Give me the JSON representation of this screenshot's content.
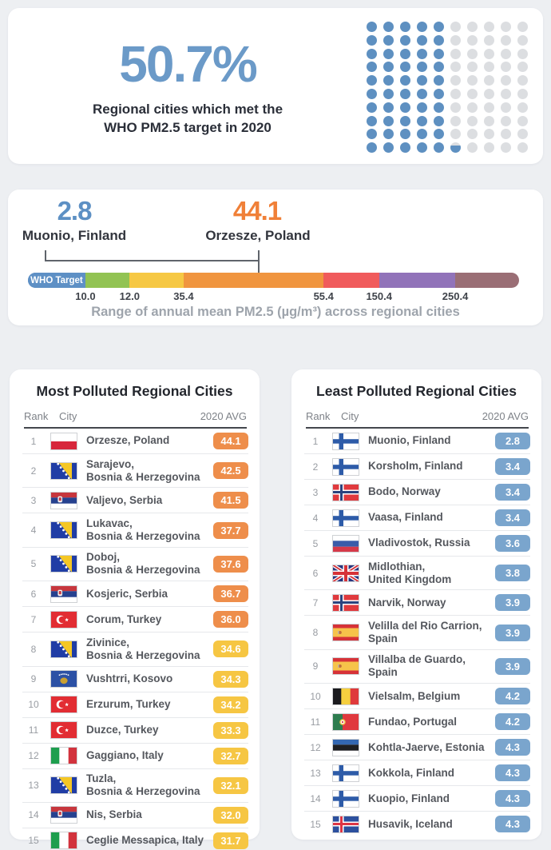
{
  "stat_card": {
    "value": "50.7%",
    "caption_line1": "Regional cities which met the",
    "caption_line2": "WHO PM2.5 target in 2020",
    "value_color": "#6b9ac8",
    "dot_filled_color": "#5e90c1",
    "dot_empty_color": "#dcdee1"
  },
  "range_card": {
    "min": {
      "value": "2.8",
      "label": "Muonio, Finland",
      "color": "#5d90c4"
    },
    "max": {
      "value": "44.1",
      "label": "Orzesze, Poland",
      "color": "#f08038"
    },
    "who_pill_label": "WHO Target",
    "segments": [
      {
        "name": "who-target",
        "color": "#5e90c5",
        "width_pct": 11.7
      },
      {
        "name": "band-good",
        "color": "#92c353",
        "width_pct": 9.0
      },
      {
        "name": "band-moderate",
        "color": "#f6c844",
        "width_pct": 11.0
      },
      {
        "name": "band-unhealthy-sensitive",
        "color": "#f0953f",
        "width_pct": 28.5
      },
      {
        "name": "band-unhealthy",
        "color": "#f05b5c",
        "width_pct": 11.3
      },
      {
        "name": "band-very-unhealthy",
        "color": "#9173b9",
        "width_pct": 15.5
      },
      {
        "name": "band-hazardous",
        "color": "#9a6e75",
        "width_pct": 13.0
      }
    ],
    "ticks": [
      {
        "label": "10.0",
        "pct": 11.7
      },
      {
        "label": "12.0",
        "pct": 20.7
      },
      {
        "label": "35.4",
        "pct": 31.7
      },
      {
        "label": "55.4",
        "pct": 60.2
      },
      {
        "label": "150.4",
        "pct": 71.5
      },
      {
        "label": "250.4",
        "pct": 87.0
      }
    ],
    "caption": "Range of annual mean PM2.5 (µg/m³) across regional cities"
  },
  "badge_colors": {
    "orange": "#ee8e4b",
    "yellow": "#f6c643",
    "blue": "#7aa5cd"
  },
  "tables": {
    "most": {
      "title": "Most Polluted Regional Cities",
      "headers": [
        "Rank",
        "City",
        "2020 AVG"
      ],
      "rows": [
        {
          "rank": "1",
          "flag": "poland",
          "city": [
            "Orzesze, Poland"
          ],
          "value": "44.1",
          "badge": "orange"
        },
        {
          "rank": "2",
          "flag": "bosnia-herzegovina",
          "city": [
            "Sarajevo,",
            "Bosnia & Herzegovina"
          ],
          "value": "42.5",
          "badge": "orange"
        },
        {
          "rank": "3",
          "flag": "serbia",
          "city": [
            "Valjevo, Serbia"
          ],
          "value": "41.5",
          "badge": "orange"
        },
        {
          "rank": "4",
          "flag": "bosnia-herzegovina",
          "city": [
            "Lukavac,",
            "Bosnia & Herzegovina"
          ],
          "value": "37.7",
          "badge": "orange"
        },
        {
          "rank": "5",
          "flag": "bosnia-herzegovina",
          "city": [
            "Doboj,",
            "Bosnia & Herzegovina"
          ],
          "value": "37.6",
          "badge": "orange"
        },
        {
          "rank": "6",
          "flag": "serbia",
          "city": [
            "Kosjeric, Serbia"
          ],
          "value": "36.7",
          "badge": "orange"
        },
        {
          "rank": "7",
          "flag": "turkey",
          "city": [
            "Corum, Turkey"
          ],
          "value": "36.0",
          "badge": "orange"
        },
        {
          "rank": "8",
          "flag": "bosnia-herzegovina",
          "city": [
            "Zivinice,",
            "Bosnia & Herzegovina"
          ],
          "value": "34.6",
          "badge": "yellow"
        },
        {
          "rank": "9",
          "flag": "kosovo",
          "city": [
            "Vushtrri, Kosovo"
          ],
          "value": "34.3",
          "badge": "yellow"
        },
        {
          "rank": "10",
          "flag": "turkey",
          "city": [
            "Erzurum, Turkey"
          ],
          "value": "34.2",
          "badge": "yellow"
        },
        {
          "rank": "11",
          "flag": "turkey",
          "city": [
            "Duzce, Turkey"
          ],
          "value": "33.3",
          "badge": "yellow"
        },
        {
          "rank": "12",
          "flag": "italy",
          "city": [
            "Gaggiano, Italy"
          ],
          "value": "32.7",
          "badge": "yellow"
        },
        {
          "rank": "13",
          "flag": "bosnia-herzegovina",
          "city": [
            "Tuzla,",
            "Bosnia & Herzegovina"
          ],
          "value": "32.1",
          "badge": "yellow"
        },
        {
          "rank": "14",
          "flag": "serbia",
          "city": [
            "Nis, Serbia"
          ],
          "value": "32.0",
          "badge": "yellow"
        },
        {
          "rank": "15",
          "flag": "italy",
          "city": [
            "Ceglie Messapica, Italy"
          ],
          "value": "31.7",
          "badge": "yellow"
        }
      ]
    },
    "least": {
      "title": "Least Polluted Regional Cities",
      "headers": [
        "Rank",
        "City",
        "2020 AVG"
      ],
      "rows": [
        {
          "rank": "1",
          "flag": "finland",
          "city": [
            "Muonio, Finland"
          ],
          "value": "2.8",
          "badge": "blue"
        },
        {
          "rank": "2",
          "flag": "finland",
          "city": [
            "Korsholm, Finland"
          ],
          "value": "3.4",
          "badge": "blue"
        },
        {
          "rank": "3",
          "flag": "norway",
          "city": [
            "Bodo, Norway"
          ],
          "value": "3.4",
          "badge": "blue"
        },
        {
          "rank": "4",
          "flag": "finland",
          "city": [
            "Vaasa, Finland"
          ],
          "value": "3.4",
          "badge": "blue"
        },
        {
          "rank": "5",
          "flag": "russia",
          "city": [
            "Vladivostok, Russia"
          ],
          "value": "3.6",
          "badge": "blue"
        },
        {
          "rank": "6",
          "flag": "united-kingdom",
          "city": [
            "Midlothian,",
            "United Kingdom"
          ],
          "value": "3.8",
          "badge": "blue"
        },
        {
          "rank": "7",
          "flag": "norway",
          "city": [
            "Narvik, Norway"
          ],
          "value": "3.9",
          "badge": "blue"
        },
        {
          "rank": "8",
          "flag": "spain",
          "city": [
            "Velilla del Rio Carrion,",
            "Spain"
          ],
          "value": "3.9",
          "badge": "blue"
        },
        {
          "rank": "9",
          "flag": "spain",
          "city": [
            "Villalba de Guardo,",
            "Spain"
          ],
          "value": "3.9",
          "badge": "blue"
        },
        {
          "rank": "10",
          "flag": "belgium",
          "city": [
            "Vielsalm, Belgium"
          ],
          "value": "4.2",
          "badge": "blue"
        },
        {
          "rank": "11",
          "flag": "portugal",
          "city": [
            "Fundao, Portugal"
          ],
          "value": "4.2",
          "badge": "blue"
        },
        {
          "rank": "12",
          "flag": "estonia",
          "city": [
            "Kohtla-Jaerve, Estonia"
          ],
          "value": "4.3",
          "badge": "blue"
        },
        {
          "rank": "13",
          "flag": "finland",
          "city": [
            "Kokkola, Finland"
          ],
          "value": "4.3",
          "badge": "blue"
        },
        {
          "rank": "14",
          "flag": "finland",
          "city": [
            "Kuopio, Finland"
          ],
          "value": "4.3",
          "badge": "blue"
        },
        {
          "rank": "15",
          "flag": "iceland",
          "city": [
            "Husavik, Iceland"
          ],
          "value": "4.3",
          "badge": "blue"
        }
      ]
    }
  },
  "chart_data": [
    {
      "type": "pie",
      "render_hint": "waffle-grid-10x10, column-fill bottom-up, 1 unit = 1%",
      "title": "Regional cities which met the WHO PM2.5 target in 2020",
      "slices": [
        {
          "label": "Met WHO PM2.5 target",
          "value": 50.7,
          "color": "#5e90c1"
        },
        {
          "label": "Did not meet target",
          "value": 49.3,
          "color": "#dcdee1"
        }
      ]
    },
    {
      "type": "bar",
      "render_hint": "horizontal color-band scale of annual mean PM2.5 (µg/m³)",
      "title": "Range of annual mean PM2.5 (µg/m³) across regional cities",
      "breakpoints": [
        10.0,
        12.0,
        35.4,
        55.4,
        150.4,
        250.4
      ],
      "bands": [
        "WHO Target",
        "good",
        "moderate",
        "unhealthy-for-sensitive",
        "unhealthy",
        "very-unhealthy",
        "hazardous"
      ],
      "band_colors": [
        "#5e90c5",
        "#92c353",
        "#f6c844",
        "#f0953f",
        "#f05b5c",
        "#9173b9",
        "#9a6e75"
      ],
      "annotations": [
        {
          "value": 2.8,
          "label": "Muonio, Finland"
        },
        {
          "value": 44.1,
          "label": "Orzesze, Poland"
        }
      ]
    },
    {
      "type": "table",
      "title": "Most Polluted Regional Cities",
      "columns": [
        "Rank",
        "City",
        "2020 AVG"
      ],
      "rows": [
        [
          1,
          "Orzesze, Poland",
          44.1
        ],
        [
          2,
          "Sarajevo, Bosnia & Herzegovina",
          42.5
        ],
        [
          3,
          "Valjevo, Serbia",
          41.5
        ],
        [
          4,
          "Lukavac, Bosnia & Herzegovina",
          37.7
        ],
        [
          5,
          "Doboj, Bosnia & Herzegovina",
          37.6
        ],
        [
          6,
          "Kosjeric, Serbia",
          36.7
        ],
        [
          7,
          "Corum, Turkey",
          36.0
        ],
        [
          8,
          "Zivinice, Bosnia & Herzegovina",
          34.6
        ],
        [
          9,
          "Vushtrri, Kosovo",
          34.3
        ],
        [
          10,
          "Erzurum, Turkey",
          34.2
        ],
        [
          11,
          "Duzce, Turkey",
          33.3
        ],
        [
          12,
          "Gaggiano, Italy",
          32.7
        ],
        [
          13,
          "Tuzla, Bosnia & Herzegovina",
          32.1
        ],
        [
          14,
          "Nis, Serbia",
          32.0
        ],
        [
          15,
          "Ceglie Messapica, Italy",
          31.7
        ]
      ]
    },
    {
      "type": "table",
      "title": "Least Polluted Regional Cities",
      "columns": [
        "Rank",
        "City",
        "2020 AVG"
      ],
      "rows": [
        [
          1,
          "Muonio, Finland",
          2.8
        ],
        [
          2,
          "Korsholm, Finland",
          3.4
        ],
        [
          3,
          "Bodo, Norway",
          3.4
        ],
        [
          4,
          "Vaasa, Finland",
          3.4
        ],
        [
          5,
          "Vladivostok, Russia",
          3.6
        ],
        [
          6,
          "Midlothian, United Kingdom",
          3.8
        ],
        [
          7,
          "Narvik, Norway",
          3.9
        ],
        [
          8,
          "Velilla del Rio Carrion, Spain",
          3.9
        ],
        [
          9,
          "Villalba de Guardo, Spain",
          3.9
        ],
        [
          10,
          "Vielsalm, Belgium",
          4.2
        ],
        [
          11,
          "Fundao, Portugal",
          4.2
        ],
        [
          12,
          "Kohtla-Jaerve, Estonia",
          4.3
        ],
        [
          13,
          "Kokkola, Finland",
          4.3
        ],
        [
          14,
          "Kuopio, Finland",
          4.3
        ],
        [
          15,
          "Husavik, Iceland",
          4.3
        ]
      ]
    }
  ]
}
